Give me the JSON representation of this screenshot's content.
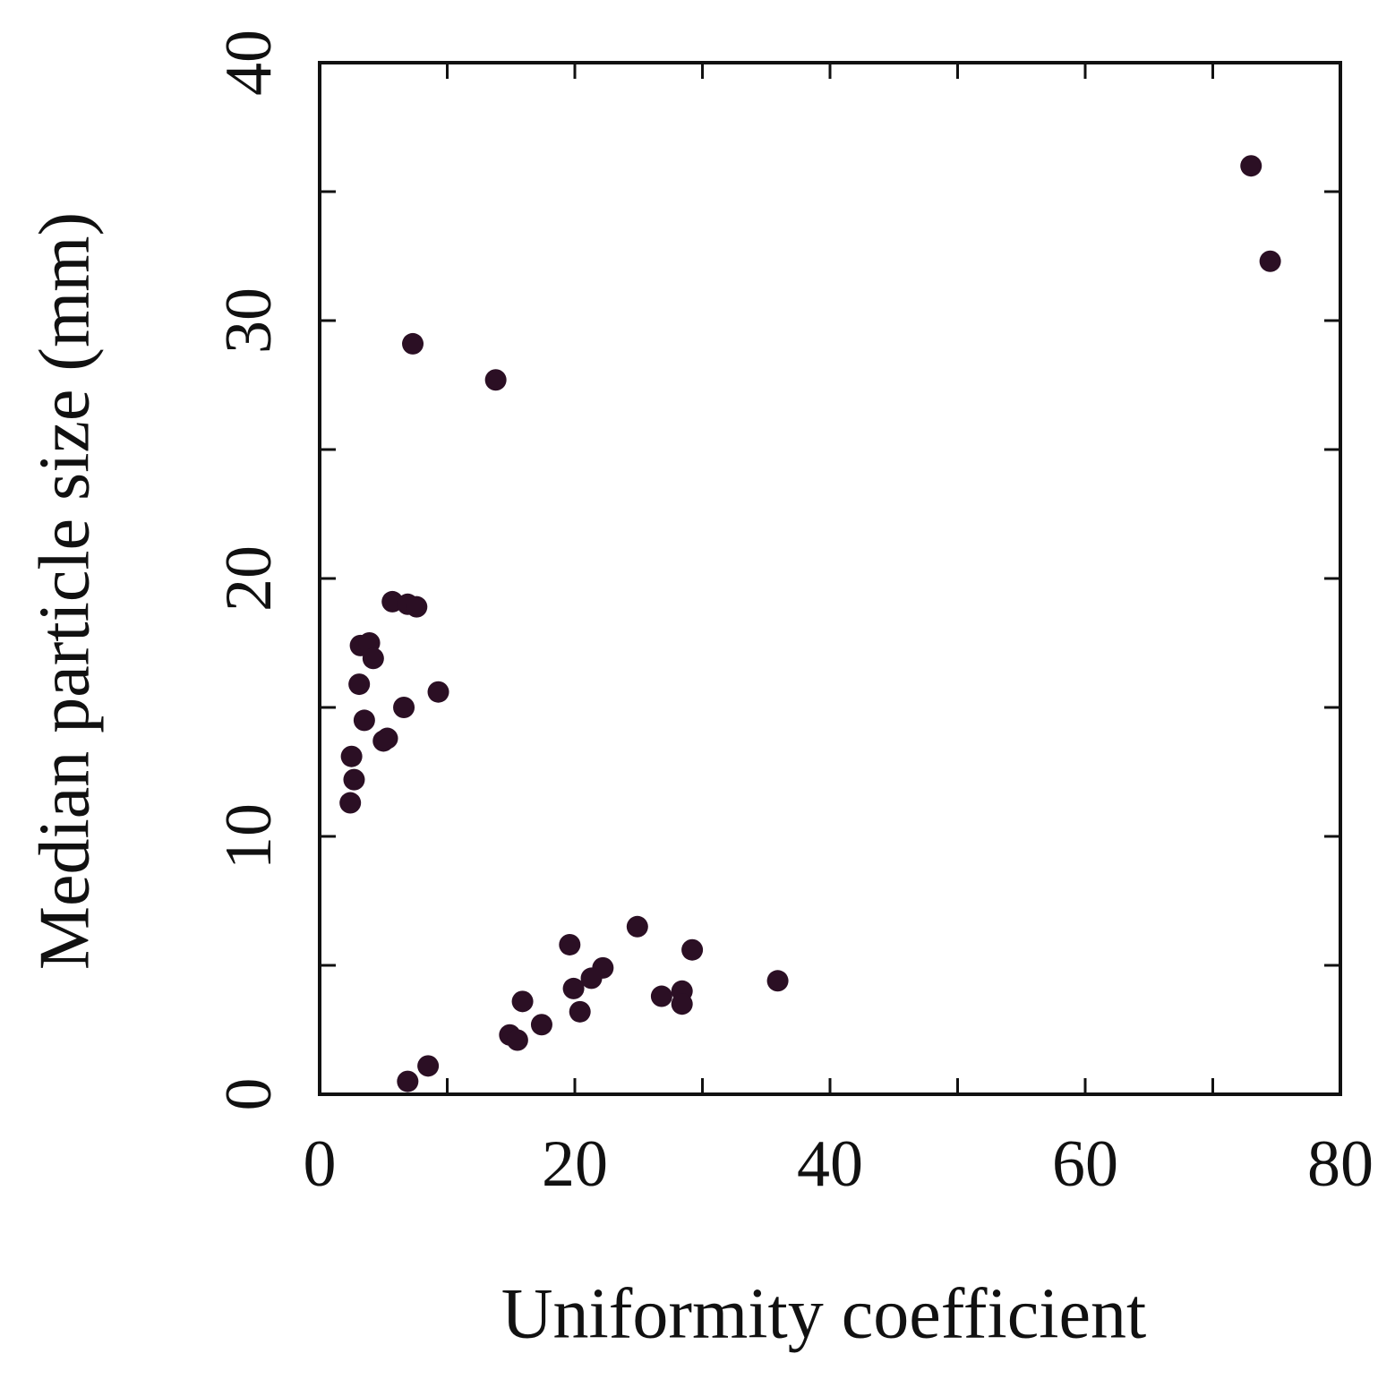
{
  "chart_data": {
    "type": "scatter",
    "x_label": "Uniformity coefficient",
    "y_label": "Median particle size (mm)",
    "color": "#2b0f24",
    "xlim": [
      0,
      80
    ],
    "ylim": [
      0,
      40
    ],
    "xticks": [
      0,
      20,
      40,
      60,
      80
    ],
    "yticks": [
      0,
      10,
      20,
      30,
      40
    ],
    "xminorticks": [
      10,
      30,
      50,
      70
    ],
    "yminorticks": [
      5,
      15,
      25,
      35
    ],
    "x": [
      73.0,
      74.5,
      7.3,
      13.8,
      5.7,
      6.9,
      7.6,
      3.2,
      3.9,
      4.2,
      3.1,
      9.3,
      6.6,
      3.5,
      5.0,
      5.3,
      2.5,
      2.7,
      2.4,
      24.9,
      19.6,
      29.2,
      35.9,
      22.2,
      21.3,
      19.9,
      26.8,
      28.4,
      28.4,
      15.9,
      20.4,
      17.4,
      14.9,
      15.5,
      8.5,
      6.9
    ],
    "values": [
      36.0,
      32.3,
      29.1,
      27.7,
      19.1,
      19.0,
      18.9,
      17.4,
      17.5,
      16.9,
      15.9,
      15.6,
      15.0,
      14.5,
      13.7,
      13.8,
      13.1,
      12.2,
      11.3,
      6.5,
      5.8,
      5.6,
      4.4,
      4.9,
      4.5,
      4.1,
      3.8,
      4.0,
      3.5,
      3.6,
      3.2,
      2.7,
      2.3,
      2.1,
      1.1,
      0.5
    ]
  }
}
